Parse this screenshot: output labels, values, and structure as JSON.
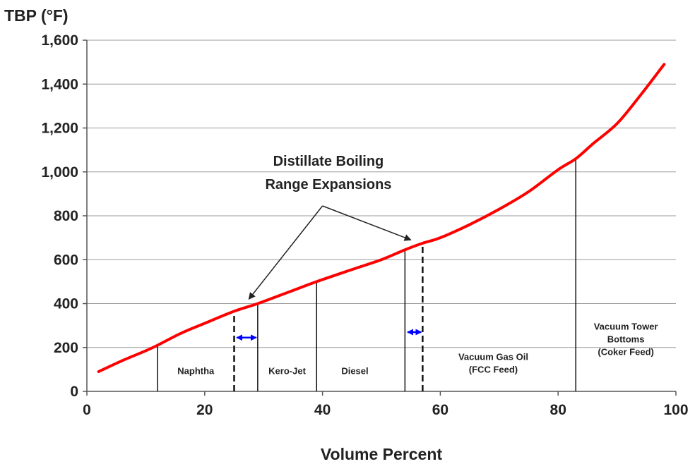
{
  "chart_data": {
    "type": "line",
    "title": "",
    "xlabel": "Volume Percent",
    "ylabel": "TBP (°F)",
    "xlim": [
      0,
      100
    ],
    "ylim": [
      0,
      1600
    ],
    "xticks": [
      0,
      20,
      40,
      60,
      80,
      100
    ],
    "xtick_labels": [
      "0",
      "20",
      "40",
      "60",
      "80",
      "100"
    ],
    "yticks": [
      0,
      200,
      400,
      600,
      800,
      1000,
      1200,
      1400,
      1600
    ],
    "ytick_labels": [
      "0",
      "200",
      "400",
      "600",
      "800",
      "1,000",
      "1,200",
      "1,400",
      "1,600"
    ],
    "grid": "horizontal",
    "legend": "none",
    "series": [
      {
        "color": "#ff0000",
        "x": [
          2,
          6,
          10,
          12,
          16,
          20,
          25,
          29,
          35,
          39,
          45,
          50,
          54,
          57,
          60,
          65,
          70,
          75,
          80,
          83,
          86,
          90,
          94,
          98
        ],
        "y": [
          90,
          140,
          185,
          210,
          265,
          310,
          365,
          400,
          460,
          500,
          555,
          600,
          645,
          675,
          700,
          760,
          830,
          910,
          1010,
          1060,
          1130,
          1220,
          1350,
          1490
        ]
      }
    ],
    "cut_points": [
      {
        "x": 12,
        "y": 210,
        "style": "solid"
      },
      {
        "x": 25,
        "y": 365,
        "style": "dashed"
      },
      {
        "x": 29,
        "y": 400,
        "style": "solid"
      },
      {
        "x": 39,
        "y": 500,
        "style": "solid"
      },
      {
        "x": 54,
        "y": 645,
        "style": "solid"
      },
      {
        "x": 57,
        "y": 675,
        "style": "dashed"
      },
      {
        "x": 83,
        "y": 1060,
        "style": "solid"
      }
    ],
    "regions": [
      {
        "lines": [
          "Naphtha"
        ],
        "x": 18.5,
        "y": 95
      },
      {
        "lines": [
          "Kero-Jet"
        ],
        "x": 34,
        "y": 95
      },
      {
        "lines": [
          "Diesel"
        ],
        "x": 45.5,
        "y": 95
      },
      {
        "lines": [
          "Vacuum Gas Oil",
          "(FCC Feed)"
        ],
        "x": 69,
        "y": 130
      },
      {
        "lines": [
          "Vacuum Tower",
          "Bottoms",
          "(Coker Feed)"
        ],
        "x": 91.5,
        "y": 240
      }
    ],
    "expansion_arrows": [
      {
        "x1": 25.2,
        "x2": 29,
        "y": 245,
        "color": "#0000ff"
      },
      {
        "x1": 54.2,
        "x2": 57,
        "y": 270,
        "color": "#0000ff"
      }
    ],
    "annotation": {
      "lines": [
        "Distillate Boiling",
        "Range Expansions"
      ],
      "text_x": 41,
      "text_y": [
        1050,
        945
      ],
      "apex": {
        "x": 40,
        "y": 845
      },
      "targets": [
        {
          "x": 27.5,
          "y": 420
        },
        {
          "x": 55,
          "y": 690
        }
      ]
    }
  }
}
